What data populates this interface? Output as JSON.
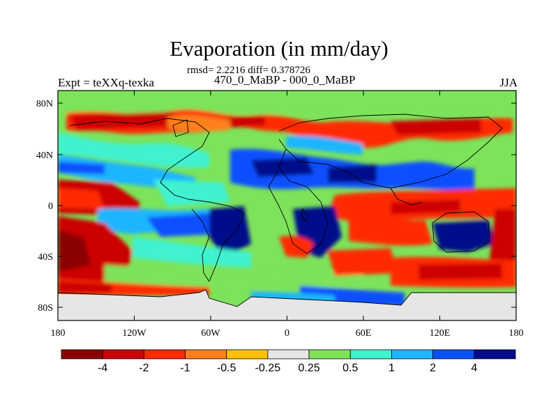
{
  "title": "Evaporation (in mm/day)",
  "stats": "rmsd= 2.2216 diff= 0.378726",
  "left_label": "Expt = teXXq-texka",
  "center_label": "470_0_MaBP - 000_0_MaBP",
  "right_label": "JJA",
  "lat_labels": [
    "80N",
    "40N",
    "0",
    "40S",
    "80S"
  ],
  "lon_labels": [
    "180",
    "120W",
    "60W",
    "0",
    "60E",
    "120E",
    "180"
  ],
  "colorbar": {
    "labels": [
      "-4",
      "-2",
      "-1",
      "-0.5",
      "-0.25",
      "0.25",
      "0.5",
      "1",
      "2",
      "4"
    ],
    "colors": [
      "#8b0000",
      "#cd0000",
      "#ff2a00",
      "#ff7f1f",
      "#ffc000",
      "#e6e6e6",
      "#7ce35a",
      "#3ff2d0",
      "#1fb5ff",
      "#0a50ff",
      "#000a8a"
    ]
  },
  "land_mask_color": "#e6e6e6"
}
